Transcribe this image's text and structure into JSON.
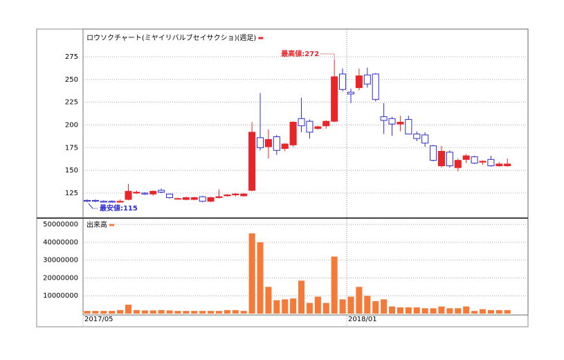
{
  "chart_data": [
    {
      "type": "candlestick",
      "title": "ロウソクチャート(ミヤイリバルブセイサクショ)(週足)",
      "up_color": "#e8262a",
      "down_color": "#2b2bd0",
      "grid": true,
      "ylim": [
        97.5,
        304.7
      ],
      "yticks": [
        125,
        150,
        175,
        200,
        225,
        250,
        275
      ],
      "annotations": {
        "high": "最高値:272",
        "low": "最安値:115"
      },
      "series": [
        {
          "open": [
            117,
            117,
            116,
            116,
            115,
            118,
            125,
            125,
            124,
            128,
            124,
            119,
            118,
            118,
            121,
            116,
            120,
            122,
            123,
            122,
            128,
            186,
            176,
            187,
            174,
            178,
            207,
            204,
            196,
            199,
            204,
            256,
            236,
            241,
            255,
            256,
            209,
            207,
            201,
            206,
            190,
            189,
            177,
            155,
            170,
            153,
            162,
            165,
            159,
            162,
            155,
            155
          ],
          "high": [
            118,
            118,
            117,
            117,
            118,
            135,
            128,
            126,
            128,
            130,
            124,
            120,
            121,
            121,
            122,
            121,
            129,
            124,
            125,
            125,
            203,
            235,
            195,
            189,
            180,
            204,
            230,
            206,
            199,
            205,
            272,
            262,
            240,
            262,
            263,
            257,
            224,
            209,
            210,
            210,
            193,
            192,
            178,
            177,
            172,
            163,
            168,
            166,
            161,
            166,
            159,
            163
          ],
          "low": [
            115,
            115,
            115,
            115,
            115,
            117,
            124,
            123,
            122,
            125,
            119,
            118,
            117,
            117,
            115,
            115,
            119,
            121,
            121,
            121,
            127,
            172,
            163,
            167,
            171,
            176,
            192,
            185,
            195,
            196,
            203,
            237,
            224,
            238,
            241,
            226,
            190,
            188,
            193,
            190,
            182,
            176,
            160,
            153,
            153,
            149,
            158,
            157,
            156,
            154,
            154,
            154
          ],
          "close": [
            116,
            116,
            115,
            115,
            116,
            127,
            126,
            124,
            127,
            126,
            120,
            119,
            120,
            120,
            116,
            120,
            121,
            123,
            124,
            124,
            192,
            175,
            184,
            172,
            179,
            203,
            199,
            192,
            198,
            204,
            253,
            239,
            234,
            254,
            245,
            228,
            205,
            201,
            203,
            190,
            185,
            180,
            161,
            171,
            155,
            161,
            166,
            158,
            160,
            155,
            157,
            157
          ]
        }
      ]
    },
    {
      "type": "bar",
      "title": "出来高",
      "color": "#f47a3a",
      "grid": true,
      "ylim": [
        0,
        53200000
      ],
      "yticks": [
        10000000,
        20000000,
        30000000,
        40000000,
        50000000
      ],
      "categories": [
        "2017/05",
        null,
        null,
        null,
        null,
        null,
        null,
        null,
        null,
        null,
        null,
        null,
        null,
        null,
        null,
        null,
        null,
        null,
        null,
        null,
        null,
        null,
        null,
        null,
        null,
        null,
        null,
        null,
        null,
        null,
        null,
        null,
        "2018/01",
        null,
        null,
        null,
        null,
        null,
        null,
        null,
        null,
        null,
        null,
        null,
        null,
        null,
        null,
        null,
        null,
        null,
        null,
        null
      ],
      "values": [
        1500000,
        1500000,
        1500000,
        1500000,
        2000000,
        5000000,
        2000000,
        1800000,
        1800000,
        2000000,
        1800000,
        1500000,
        1500000,
        1500000,
        1500000,
        1500000,
        1500000,
        2000000,
        2000000,
        1500000,
        45000000,
        40000000,
        15000000,
        7500000,
        8000000,
        8500000,
        18500000,
        6000000,
        9500000,
        6000000,
        32000000,
        8000000,
        9500000,
        15000000,
        10000000,
        7000000,
        8000000,
        4000000,
        3500000,
        3500000,
        3500000,
        3000000,
        3000000,
        4000000,
        3000000,
        3000000,
        4000000,
        1500000,
        2500000,
        2000000,
        2000000,
        2000000
      ]
    }
  ]
}
